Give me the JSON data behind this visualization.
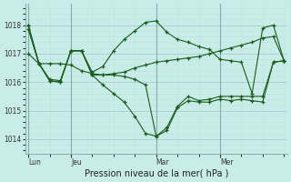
{
  "xlabel": "Pression niveau de la mer( hPa )",
  "ylim": [
    1013.5,
    1018.75
  ],
  "yticks": [
    1014,
    1015,
    1016,
    1017,
    1018
  ],
  "bg_color": "#c8ece8",
  "line_color": "#1a5c1a",
  "grid_major_color": "#aacccc",
  "grid_minor_color": "#c4e0de",
  "spine_color": "#88aaaa",
  "n_points": 25,
  "day_labels": [
    "Lun",
    "Jeu",
    "Mar",
    "Mer"
  ],
  "day_positions": [
    0,
    4,
    12,
    18
  ],
  "lines": [
    [
      1018.0,
      1016.65,
      1016.65,
      1016.65,
      1016.6,
      1016.4,
      1016.3,
      1016.25,
      1016.3,
      1016.35,
      1016.5,
      1016.6,
      1016.7,
      1016.75,
      1016.8,
      1016.85,
      1016.9,
      1017.0,
      1017.1,
      1017.2,
      1017.3,
      1017.4,
      1017.55,
      1017.6,
      1016.75
    ],
    [
      1017.85,
      1016.65,
      1016.1,
      1016.05,
      1017.1,
      1017.1,
      1016.25,
      1015.9,
      1015.6,
      1015.3,
      1014.8,
      1014.2,
      1014.1,
      1014.4,
      1015.15,
      1015.5,
      1015.35,
      1015.4,
      1015.5,
      1015.5,
      1015.5,
      1015.5,
      1015.5,
      1016.7,
      1016.75
    ],
    [
      1018.0,
      1016.65,
      1016.05,
      1016.0,
      1017.1,
      1017.1,
      1016.25,
      1016.25,
      1016.25,
      1016.2,
      1016.1,
      1015.9,
      1014.1,
      1014.3,
      1015.1,
      1015.35,
      1015.3,
      1015.3,
      1015.4,
      1015.35,
      1015.4,
      1015.35,
      1015.3,
      1016.7,
      1016.75
    ],
    [
      1017.0,
      1016.65,
      1016.05,
      1016.0,
      1017.1,
      1017.1,
      1016.35,
      1016.55,
      1017.1,
      1017.5,
      1017.8,
      1018.1,
      1018.15,
      1017.75,
      1017.5,
      1017.4,
      1017.25,
      1017.15,
      1016.8,
      1016.75,
      1016.7,
      1015.6,
      1017.9,
      1018.0,
      1016.75
    ]
  ]
}
